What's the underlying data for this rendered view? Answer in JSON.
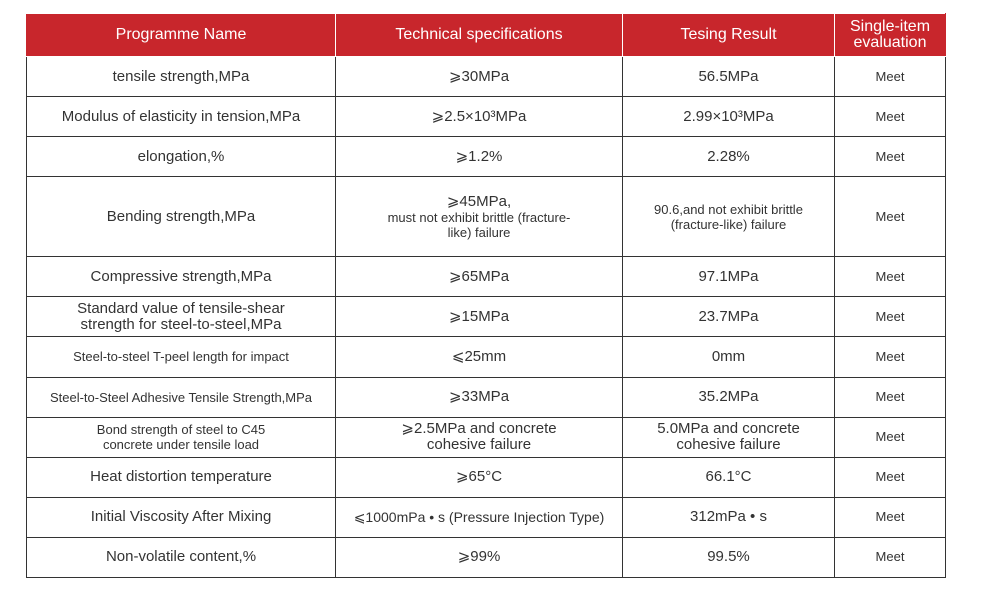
{
  "headers": {
    "name": "Programme Name",
    "spec": "Technical specifications",
    "result": "Tesing Result",
    "eval": "Single-item evaluation"
  },
  "rows": [
    {
      "name": "tensile strength,MPa",
      "spec": "⩾30MPa",
      "result": "56.5MPa",
      "eval": "Meet"
    },
    {
      "name": "Modulus of elasticity in tension,MPa",
      "spec": "⩾2.5×10³MPa",
      "result": "2.99×10³MPa",
      "eval": "Meet"
    },
    {
      "name": "elongation,%",
      "spec": "⩾1.2%",
      "result": "2.28%",
      "eval": "Meet"
    },
    {
      "name": "Bending strength,MPa",
      "spec_main": "⩾45MPa,",
      "spec_sub": "must not exhibit brittle (fracture-like) failure",
      "result": "90.6,and not exhibit brittle (fracture-like) failure",
      "eval": "Meet"
    },
    {
      "name": "Compressive strength,MPa",
      "spec": "⩾65MPa",
      "result": "97.1MPa",
      "eval": "Meet"
    },
    {
      "name": "Standard value of tensile-shear strength for steel-to-steel,MPa",
      "spec": "⩾15MPa",
      "result": "23.7MPa",
      "eval": "Meet"
    },
    {
      "name": "Steel-to-steel T-peel length for impact",
      "spec": "⩽25mm",
      "result": "0mm",
      "eval": "Meet"
    },
    {
      "name": "Steel-to-Steel Adhesive Tensile Strength,MPa",
      "spec": "⩾33MPa",
      "result": "35.2MPa",
      "eval": "Meet"
    },
    {
      "name": "Bond strength of steel to C45 concrete under tensile load",
      "spec": "⩾2.5MPa and concrete cohesive failure",
      "result": "5.0MPa and concrete cohesive failure",
      "eval": "Meet"
    },
    {
      "name": "Heat distortion temperature",
      "spec": "⩾65°C",
      "result": "66.1°C",
      "eval": "Meet"
    },
    {
      "name": "Initial Viscosity After Mixing",
      "spec": "⩽1000mPa • s (Pressure Injection Type)",
      "result": "312mPa • s",
      "eval": "Meet"
    },
    {
      "name": "Non-volatile content,%",
      "spec": "⩾99%",
      "result": "99.5%",
      "eval": "Meet"
    }
  ]
}
